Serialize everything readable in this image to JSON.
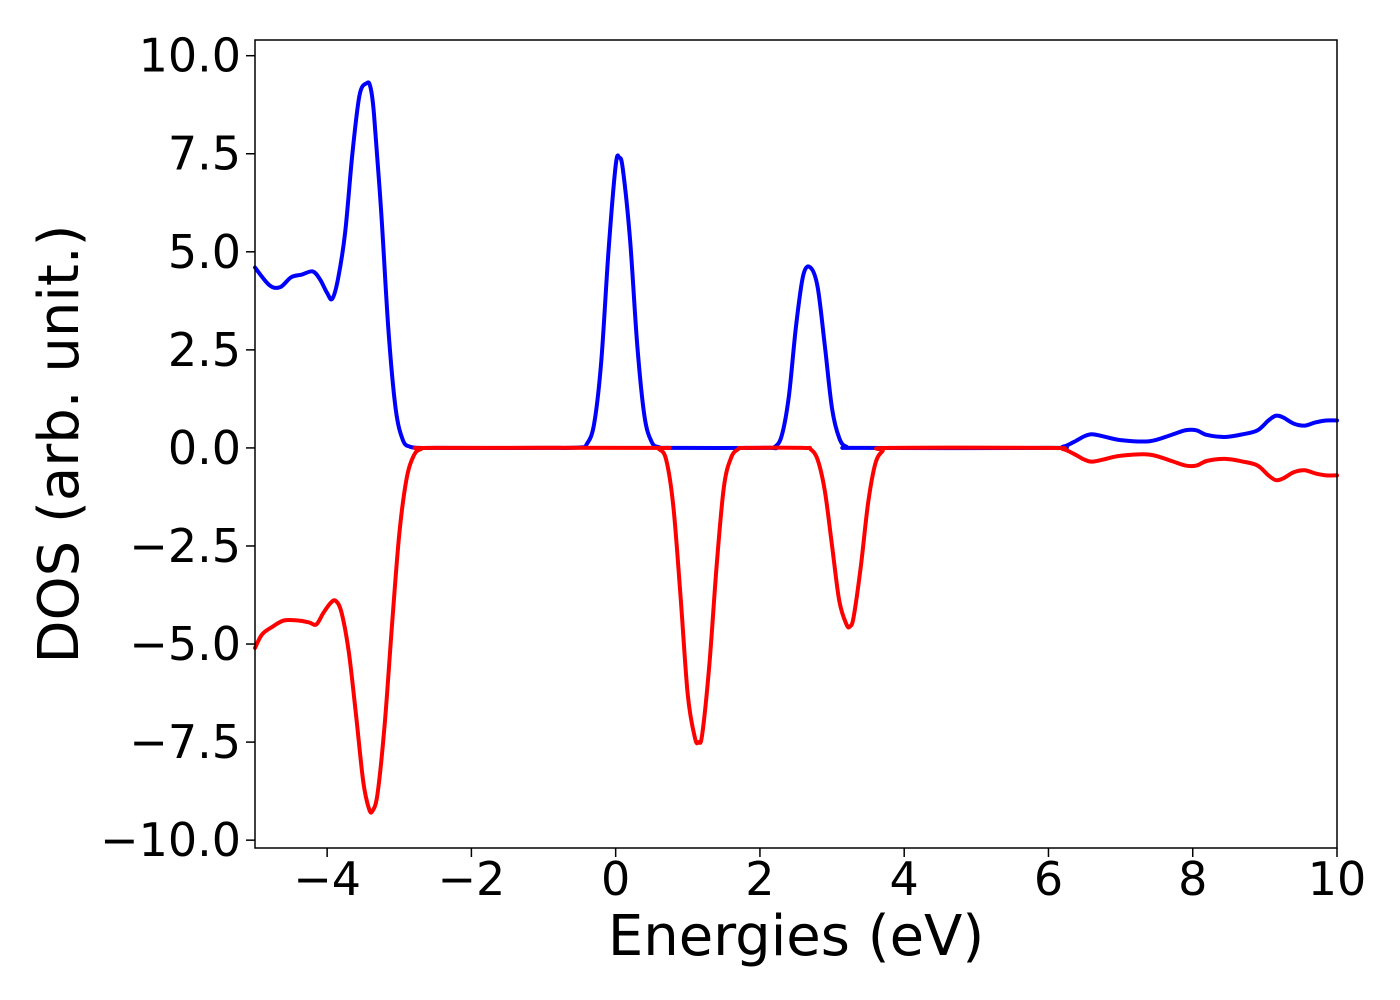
{
  "chart_data": {
    "type": "line",
    "title": "",
    "xlabel": "Energies (eV)",
    "ylabel": "DOS (arb. unit.)",
    "xlim": [
      -5,
      10
    ],
    "ylim": [
      -10.2,
      10.4
    ],
    "grid": false,
    "legend": "none",
    "x_ticks": [
      {
        "value": -4,
        "label": "−4"
      },
      {
        "value": -2,
        "label": "−2"
      },
      {
        "value": 0,
        "label": "0"
      },
      {
        "value": 2,
        "label": "2"
      },
      {
        "value": 4,
        "label": "4"
      },
      {
        "value": 6,
        "label": "6"
      },
      {
        "value": 8,
        "label": "8"
      },
      {
        "value": 10,
        "label": "10"
      }
    ],
    "y_ticks": [
      {
        "value": 10,
        "label": "10.0"
      },
      {
        "value": 7.5,
        "label": "7.5"
      },
      {
        "value": 5,
        "label": "5.0"
      },
      {
        "value": 2.5,
        "label": "2.5"
      },
      {
        "value": 0,
        "label": "0.0"
      },
      {
        "value": -2.5,
        "label": "−2.5"
      },
      {
        "value": -5,
        "label": "−5.0"
      },
      {
        "value": -7.5,
        "label": "−7.5"
      },
      {
        "value": -10,
        "label": "−10.0"
      }
    ],
    "series": [
      {
        "color": "#0000ff",
        "x": [
          -5.0,
          -4.8,
          -4.65,
          -4.5,
          -4.35,
          -4.2,
          -4.1,
          -4.0,
          -3.93,
          -3.85,
          -3.75,
          -3.65,
          -3.55,
          -3.45,
          -3.4,
          -3.35,
          -3.25,
          -3.15,
          -3.05,
          -2.95,
          -2.85,
          -2.7,
          -2.5,
          -1.0,
          -0.5,
          -0.4,
          -0.3,
          -0.2,
          -0.1,
          0.0,
          0.05,
          0.1,
          0.2,
          0.3,
          0.4,
          0.5,
          0.6,
          0.8,
          2.1,
          2.2,
          2.3,
          2.4,
          2.5,
          2.6,
          2.7,
          2.8,
          2.9,
          3.0,
          3.1,
          3.2,
          3.4,
          6.0,
          6.2,
          6.35,
          6.5,
          6.6,
          6.75,
          7.0,
          7.4,
          7.7,
          7.9,
          8.05,
          8.2,
          8.45,
          8.7,
          8.9,
          9.05,
          9.15,
          9.25,
          9.4,
          9.55,
          9.7,
          9.85,
          10.0
        ],
        "y": [
          4.6,
          4.15,
          4.1,
          4.35,
          4.42,
          4.5,
          4.3,
          3.95,
          3.8,
          4.3,
          5.5,
          7.5,
          9.0,
          9.3,
          9.2,
          8.5,
          6.0,
          3.0,
          1.0,
          0.2,
          0.03,
          0.0,
          0.0,
          0.0,
          0.01,
          0.1,
          0.6,
          2.2,
          5.0,
          7.2,
          7.4,
          7.1,
          5.3,
          2.6,
          0.8,
          0.15,
          0.02,
          0.0,
          0.0,
          0.02,
          0.3,
          1.3,
          3.1,
          4.4,
          4.6,
          4.1,
          2.6,
          1.0,
          0.25,
          0.03,
          0.0,
          0.0,
          0.03,
          0.15,
          0.3,
          0.35,
          0.3,
          0.2,
          0.17,
          0.33,
          0.45,
          0.45,
          0.33,
          0.28,
          0.35,
          0.45,
          0.7,
          0.82,
          0.78,
          0.62,
          0.57,
          0.65,
          0.7,
          0.7
        ]
      },
      {
        "color": "#ff0000",
        "x": [
          -5.0,
          -4.9,
          -4.75,
          -4.6,
          -4.4,
          -4.25,
          -4.15,
          -4.05,
          -3.95,
          -3.88,
          -3.8,
          -3.7,
          -3.6,
          -3.5,
          -3.42,
          -3.37,
          -3.3,
          -3.2,
          -3.1,
          -3.0,
          -2.9,
          -2.8,
          -2.7,
          -2.5,
          0.5,
          0.6,
          0.7,
          0.8,
          0.9,
          1.0,
          1.1,
          1.15,
          1.2,
          1.3,
          1.4,
          1.5,
          1.6,
          1.7,
          1.8,
          2.6,
          2.7,
          2.8,
          2.9,
          3.0,
          3.1,
          3.2,
          3.25,
          3.3,
          3.4,
          3.5,
          3.6,
          3.7,
          3.8,
          6.0,
          6.2,
          6.35,
          6.5,
          6.6,
          6.75,
          7.0,
          7.4,
          7.7,
          7.9,
          8.05,
          8.2,
          8.45,
          8.7,
          8.9,
          9.05,
          9.15,
          9.25,
          9.4,
          9.55,
          9.7,
          9.85,
          10.0
        ],
        "y": [
          -5.1,
          -4.75,
          -4.55,
          -4.4,
          -4.4,
          -4.45,
          -4.5,
          -4.2,
          -3.95,
          -3.9,
          -4.2,
          -5.2,
          -6.8,
          -8.5,
          -9.2,
          -9.25,
          -8.8,
          -7.0,
          -4.5,
          -2.2,
          -0.8,
          -0.2,
          -0.03,
          0.0,
          0.0,
          -0.03,
          -0.3,
          -1.5,
          -3.8,
          -6.3,
          -7.4,
          -7.5,
          -7.3,
          -5.5,
          -3.0,
          -1.0,
          -0.25,
          -0.03,
          0.0,
          0.0,
          -0.03,
          -0.3,
          -1.1,
          -2.5,
          -3.9,
          -4.5,
          -4.55,
          -4.3,
          -3.0,
          -1.4,
          -0.4,
          -0.08,
          0.0,
          0.0,
          -0.03,
          -0.15,
          -0.3,
          -0.35,
          -0.3,
          -0.2,
          -0.17,
          -0.33,
          -0.45,
          -0.45,
          -0.33,
          -0.28,
          -0.35,
          -0.45,
          -0.7,
          -0.82,
          -0.78,
          -0.62,
          -0.57,
          -0.65,
          -0.7,
          -0.7
        ]
      }
    ]
  }
}
